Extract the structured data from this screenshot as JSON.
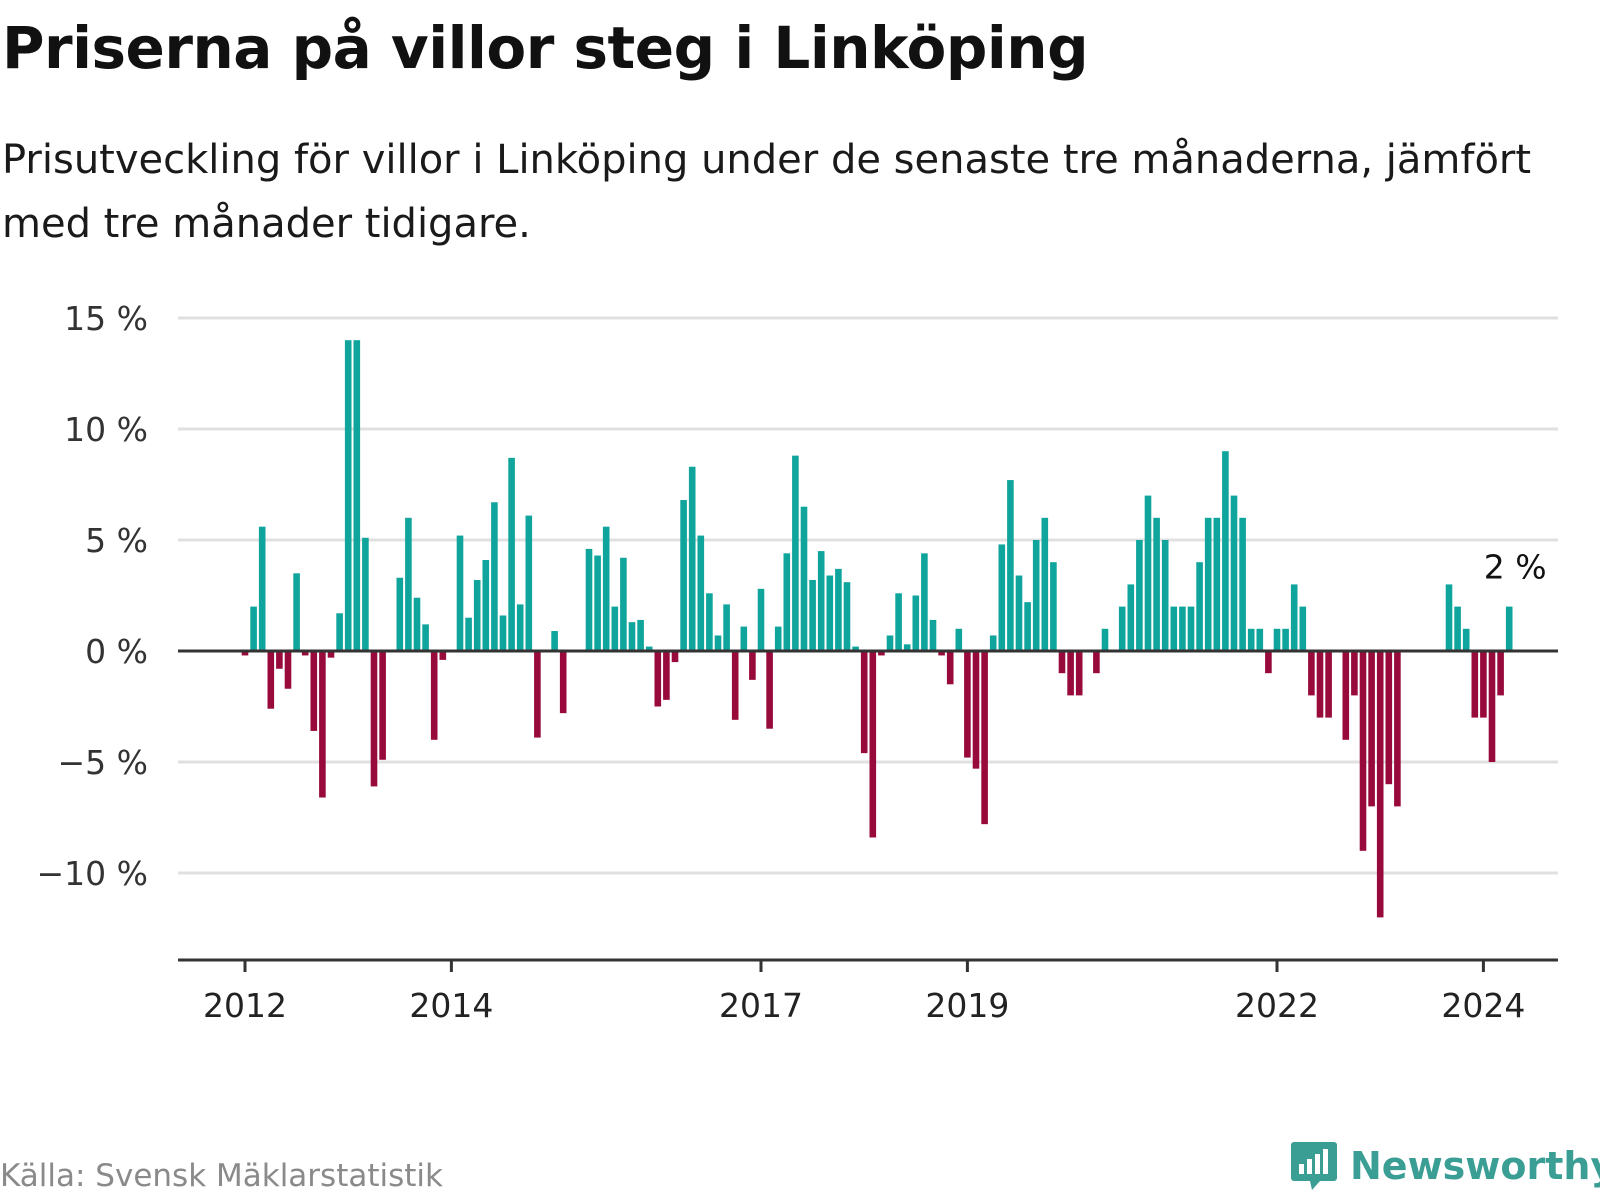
{
  "title": "Priserna på villor steg i Linköping",
  "subtitle": "Prisutveckling för villor i Linköping under de senaste tre månaderna, jämfört med tre månader tidigare.",
  "source": "Källa: Svensk Mäklarstatistik",
  "brand": "Newsworthy",
  "colors": {
    "positive": "#0fa59c",
    "negative": "#980a3b",
    "grid": "#e0e0e0",
    "axis": "#333333",
    "brand": "#3a9e95"
  },
  "chart_data": {
    "type": "bar",
    "title": "Priserna på villor steg i Linköping",
    "ylim": [
      -14,
      15.2
    ],
    "yticks": [
      15,
      10,
      5,
      0,
      -5,
      -10
    ],
    "ytick_labels": [
      "15 %",
      "10 %",
      "5 %",
      "0 %",
      "−5 %",
      "−10 %"
    ],
    "xticks": [
      {
        "label": "2012",
        "index": 0
      },
      {
        "label": "2014",
        "index": 24
      },
      {
        "label": "2017",
        "index": 60
      },
      {
        "label": "2019",
        "index": 84
      },
      {
        "label": "2022",
        "index": 120
      },
      {
        "label": "2024",
        "index": 144
      }
    ],
    "last_value_label": "2 %",
    "values": [
      -0.2,
      2.0,
      5.6,
      -2.6,
      -0.8,
      -1.7,
      3.5,
      -0.2,
      -3.6,
      -6.6,
      -0.3,
      1.7,
      14.0,
      14.0,
      5.1,
      -6.1,
      -4.9,
      0,
      3.3,
      6.0,
      2.4,
      1.2,
      -4.0,
      -0.4,
      0,
      5.2,
      1.5,
      3.2,
      4.1,
      6.7,
      1.6,
      8.7,
      2.1,
      6.1,
      -3.9,
      0,
      0.9,
      -2.8,
      0,
      0,
      4.6,
      4.3,
      5.6,
      2.0,
      4.2,
      1.3,
      1.4,
      0.2,
      -2.5,
      -2.2,
      -0.5,
      6.8,
      8.3,
      5.2,
      2.6,
      0.7,
      2.1,
      -3.1,
      1.1,
      -1.3,
      2.8,
      -3.5,
      1.1,
      4.4,
      8.8,
      6.5,
      3.2,
      4.5,
      3.4,
      3.7,
      3.1,
      0.2,
      -4.6,
      -8.4,
      -0.2,
      0.7,
      2.6,
      0.3,
      2.5,
      4.4,
      1.4,
      -0.2,
      -1.5,
      1.0,
      -4.8,
      -5.3,
      -7.8,
      0.7,
      4.8,
      7.7,
      3.4,
      2.2,
      5.0,
      6.0,
      4.0,
      -1.0,
      -2.0,
      -2.0,
      0,
      -1.0,
      1.0,
      0,
      2.0,
      3.0,
      5.0,
      7.0,
      6.0,
      5.0,
      2.0,
      2.0,
      2.0,
      4.0,
      6.0,
      6.0,
      9.0,
      7.0,
      6.0,
      1.0,
      1.0,
      -1.0,
      1.0,
      1.0,
      3.0,
      2.0,
      -2.0,
      -3.0,
      -3.0,
      0,
      -4.0,
      -2.0,
      -9.0,
      -7.0,
      -12.0,
      -6.0,
      -7.0,
      0,
      0,
      0,
      0,
      0,
      3.0,
      2.0,
      1.0,
      -3.0,
      -3.0,
      -5.0,
      -2.0,
      2.0
    ]
  }
}
